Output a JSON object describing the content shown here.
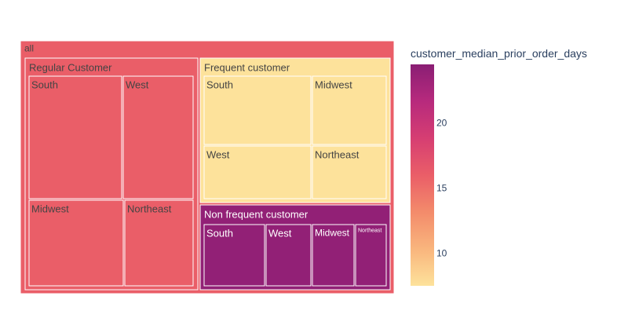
{
  "chart_data": {
    "type": "treemap",
    "root": {
      "label": "all",
      "color_value": 16.0,
      "children": [
        {
          "label": "Regular Customer",
          "color_value": 16.0,
          "children": [
            {
              "label": "South",
              "color_value": 16.0
            },
            {
              "label": "West",
              "color_value": 16.0
            },
            {
              "label": "Midwest",
              "color_value": 16.0
            },
            {
              "label": "Northeast",
              "color_value": 16.0
            }
          ]
        },
        {
          "label": "Frequent customer",
          "color_value": 7.5,
          "children": [
            {
              "label": "South",
              "color_value": 7.5
            },
            {
              "label": "Midwest",
              "color_value": 7.5
            },
            {
              "label": "West",
              "color_value": 7.5
            },
            {
              "label": "Northeast",
              "color_value": 7.5
            }
          ]
        },
        {
          "label": "Non frequent customer",
          "color_value": 24.0,
          "children": [
            {
              "label": "South",
              "color_value": 24.0
            },
            {
              "label": "West",
              "color_value": 24.0
            },
            {
              "label": "Midwest",
              "color_value": 24.0
            },
            {
              "label": "Northeast",
              "color_value": 24.0
            }
          ]
        }
      ]
    },
    "colorbar": {
      "title": "customer_median_prior_order_days",
      "range": [
        7.5,
        24.5
      ],
      "ticks": [
        10,
        15,
        20
      ],
      "colorscale": [
        "#fde29b",
        "#f9b57d",
        "#f38b6b",
        "#ea5e68",
        "#d63e72",
        "#b72a7d",
        "#8a1e74"
      ]
    }
  }
}
